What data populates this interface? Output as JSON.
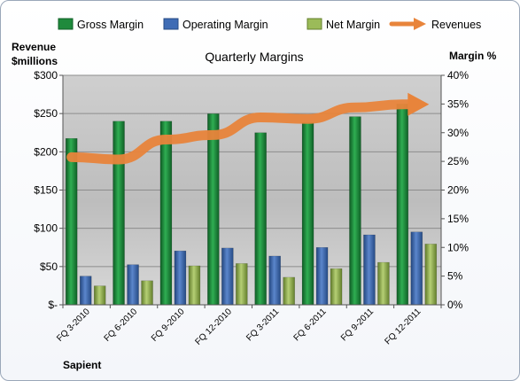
{
  "chart_data": {
    "type": "bar",
    "title": "Quarterly Margins",
    "company": "Sapient",
    "categories": [
      "FQ 3-2010",
      "FQ 6-2010",
      "FQ 9-2010",
      "FQ 12-2010",
      "FQ 3-2011",
      "FQ 6-2011",
      "FQ 9-2011",
      "FQ 12-2011"
    ],
    "y_left": {
      "label_line1": "Revenue",
      "label_line2": "$millions",
      "range": [
        0,
        300
      ],
      "ticks": [
        0,
        50,
        100,
        150,
        200,
        250,
        300
      ],
      "tick_labels": [
        "$-",
        "$50",
        "$100",
        "$150",
        "$200",
        "$250",
        "$300"
      ]
    },
    "y_right": {
      "label": "Margin %",
      "range": [
        0,
        40
      ],
      "ticks": [
        0,
        5,
        10,
        15,
        20,
        25,
        30,
        35,
        40
      ],
      "tick_labels": [
        "0%",
        "5%",
        "10%",
        "15%",
        "20%",
        "25%",
        "30%",
        "35%",
        "40%"
      ]
    },
    "series": [
      {
        "name": "Gross Margin",
        "type": "bar",
        "axis": "right",
        "color": "#1f8a3c",
        "values": [
          29.0,
          32.0,
          32.0,
          33.3,
          30.0,
          31.8,
          32.8,
          35.0
        ]
      },
      {
        "name": "Operating Margin",
        "type": "bar",
        "axis": "right",
        "color": "#3f6cb5",
        "values": [
          5.0,
          7.0,
          9.4,
          9.9,
          8.5,
          10.0,
          12.2,
          12.7
        ]
      },
      {
        "name": "Net Margin",
        "type": "bar",
        "axis": "right",
        "color": "#9bbb59",
        "values": [
          3.3,
          4.2,
          6.8,
          7.2,
          4.8,
          6.3,
          7.4,
          10.6
        ]
      },
      {
        "name": "Revenues",
        "type": "line",
        "axis": "left",
        "color": "#e8843b",
        "values": [
          193,
          190,
          216,
          222,
          245,
          243,
          258,
          262
        ]
      }
    ],
    "grid": true,
    "legend_position": "top"
  }
}
